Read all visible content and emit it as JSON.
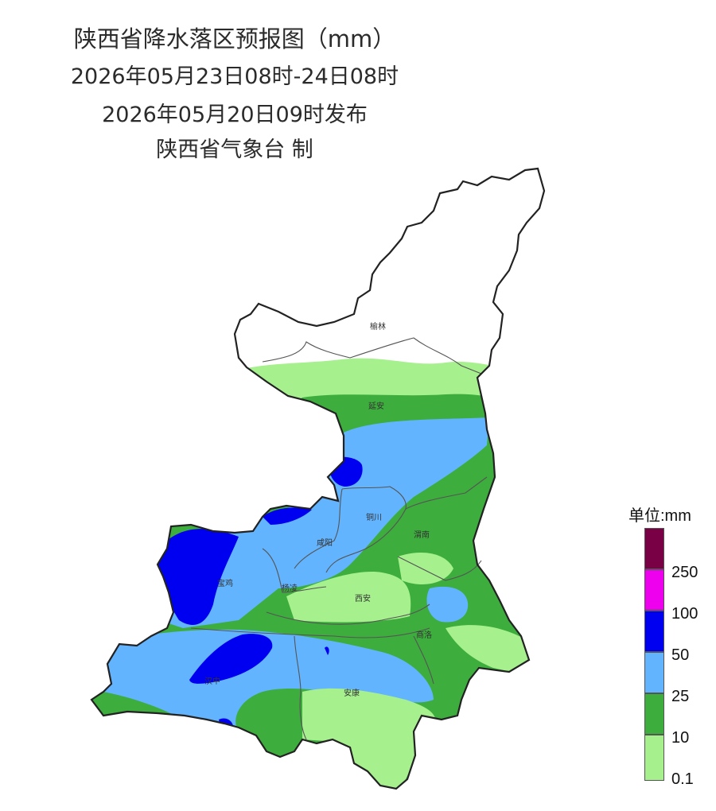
{
  "header": {
    "title": "陕西省降水落区预报图（mm）",
    "period": "2026年05月23日08时-24日08时",
    "issued": "2026年05月20日09时发布",
    "producer": "陕西省气象台 制"
  },
  "cities": {
    "yulin": "榆林",
    "yanan": "延安",
    "tongchuan": "铜川",
    "weinan": "渭南",
    "xianyang": "咸阳",
    "baoji": "宝鸡",
    "yangling": "杨凌",
    "xian": "西安",
    "shangluo": "商洛",
    "hanzhong": "汉中",
    "ankang": "安康"
  },
  "legend": {
    "title": "单位:mm",
    "labels": [
      "250",
      "100",
      "50",
      "25",
      "10",
      "0.1"
    ],
    "colors": {
      "above_250": "#7a0046",
      "100_250": "#ee00ee",
      "50_100": "#0000f0",
      "25_50": "#63b4ff",
      "10_25": "#3dad3d",
      "0.1_10": "#a6f08e"
    }
  }
}
